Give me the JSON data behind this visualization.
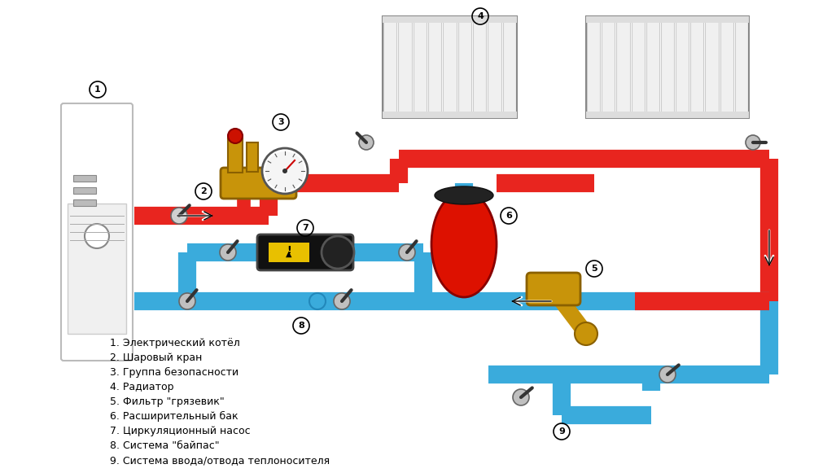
{
  "bg_color": "#ffffff",
  "red_pipe_color": "#e8251f",
  "blue_pipe_color": "#3aabdc",
  "pipe_lw": 22,
  "legend_items": [
    "1. Электрический котёл",
    "2. Шаровый кран",
    "3. Группа безопасности",
    "4. Радиатор",
    "5. Фильтр \"грязевик\"",
    "6. Расширительный бак",
    "7. Циркуляционный насос",
    "8. Система \"байпас\"",
    "9. Система ввода/отвода теплоносителя"
  ],
  "label_fontsize": 9
}
